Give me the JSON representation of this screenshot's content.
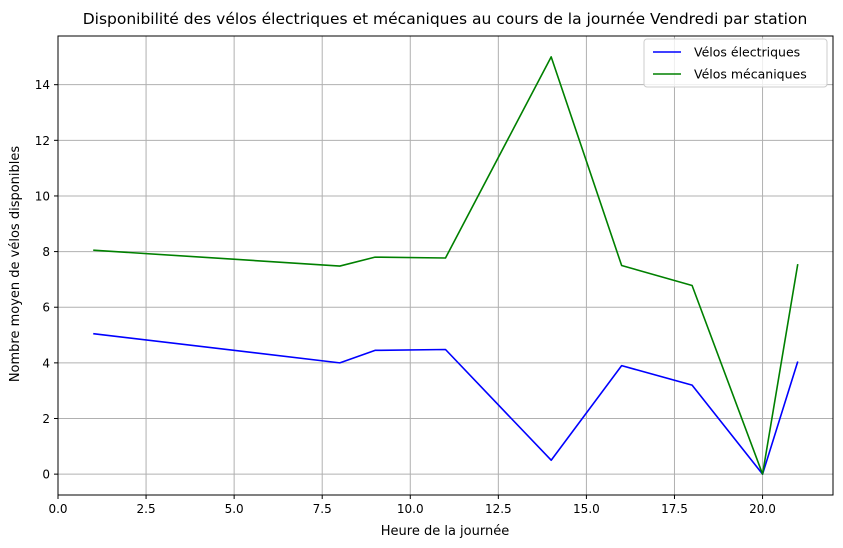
{
  "chart_data": {
    "type": "line",
    "title": "Disponibilité des vélos électriques et mécaniques au cours de la journée Vendredi par station",
    "xlabel": "Heure de la journée",
    "ylabel": "Nombre moyen de vélos disponibles",
    "xlim": [
      0,
      22
    ],
    "ylim": [
      -0.75,
      15.75
    ],
    "xticks": [
      0,
      2.5,
      5,
      7.5,
      10,
      12.5,
      15,
      17.5,
      20
    ],
    "xtick_labels": [
      "0.0",
      "2.5",
      "5.0",
      "7.5",
      "10.0",
      "12.5",
      "15.0",
      "17.5",
      "20.0"
    ],
    "yticks": [
      0,
      2,
      4,
      6,
      8,
      10,
      12,
      14
    ],
    "ytick_labels": [
      "0",
      "2",
      "4",
      "6",
      "8",
      "10",
      "12",
      "14"
    ],
    "grid": true,
    "legend_position": "top-right",
    "x": [
      1,
      8,
      9,
      11,
      14,
      16,
      18,
      20,
      21
    ],
    "series": [
      {
        "name": "Vélos électriques",
        "color": "#0000ff",
        "values": [
          5.05,
          4.0,
          4.45,
          4.48,
          0.5,
          3.9,
          3.2,
          0.0,
          4.05
        ]
      },
      {
        "name": "Vélos mécaniques",
        "color": "#008000",
        "values": [
          8.05,
          7.48,
          7.8,
          7.77,
          15.0,
          7.5,
          6.78,
          0.0,
          7.55
        ]
      }
    ]
  }
}
